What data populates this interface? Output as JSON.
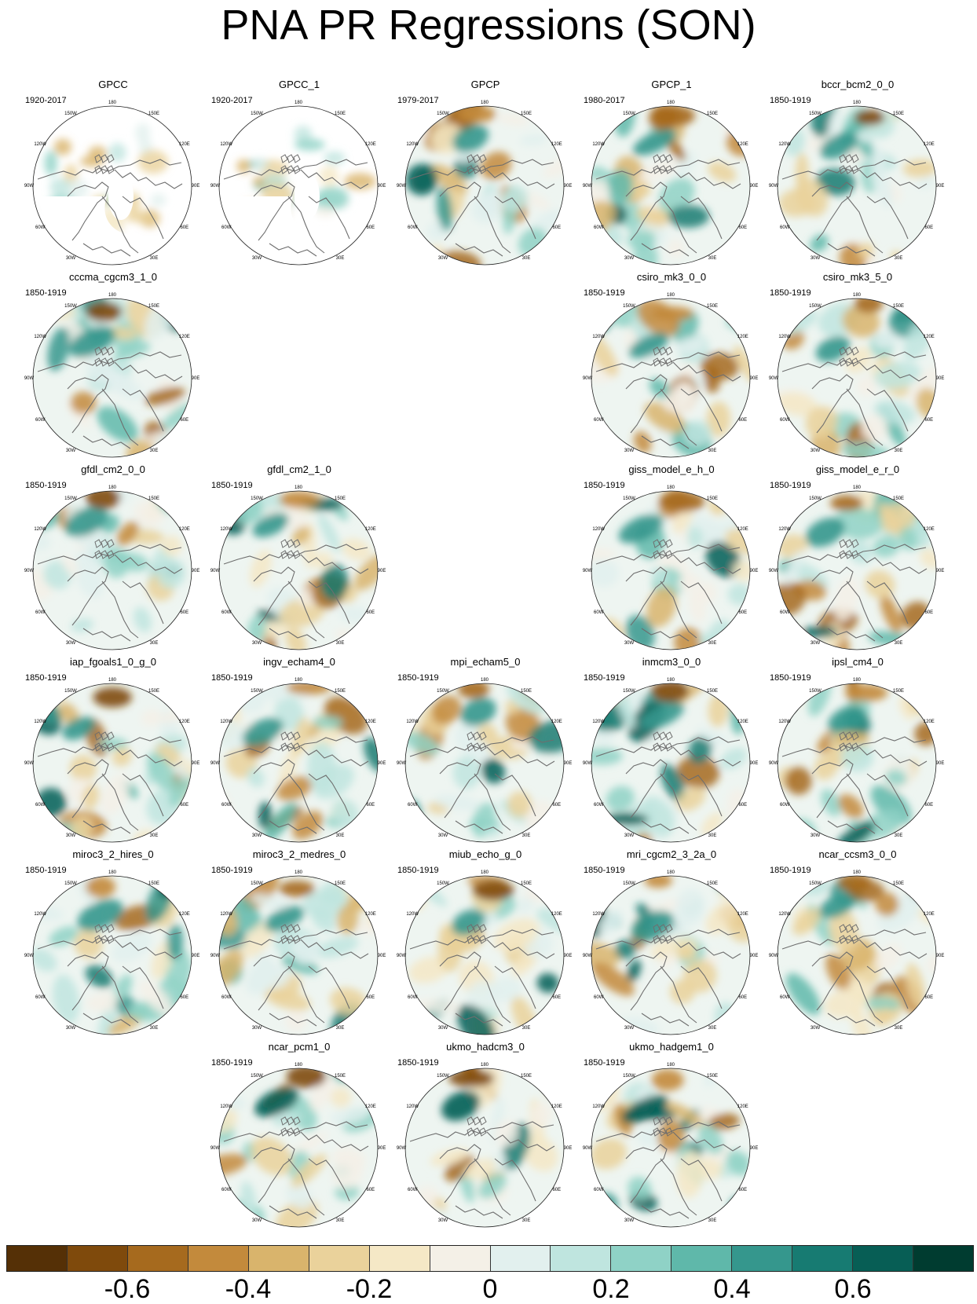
{
  "title": "PNA PR Regressions (SON)",
  "map_labels": {
    "lon_180": "180",
    "lon_150w": "150W",
    "lon_120w": "120W",
    "lon_90w": "90W",
    "lon_60w": "60W",
    "lon_30w": "30W",
    "lon_0": "0",
    "lon_30e": "30E",
    "lon_60e": "60E",
    "lon_90e": "90E",
    "lon_120e": "120E",
    "lon_150e": "150E"
  },
  "panels": [
    {
      "name": "GPCC",
      "period": "1920-2017",
      "pattern": "land"
    },
    {
      "name": "GPCC_1",
      "period": "1920-2017",
      "pattern": "land"
    },
    {
      "name": "GPCP",
      "period": "1979-2017",
      "pattern": "obs"
    },
    {
      "name": "GPCP_1",
      "period": "1980-2017",
      "pattern": "obs"
    },
    {
      "name": "bccr_bcm2_0_0",
      "period": "1850-1919",
      "pattern": "model"
    },
    {
      "name": "cccma_cgcm3_1_0",
      "period": "1850-1919",
      "pattern": "model"
    },
    {
      "name": "csiro_mk3_0_0",
      "period": "1850-1919",
      "pattern": "model"
    },
    {
      "name": "csiro_mk3_5_0",
      "period": "1850-1919",
      "pattern": "model"
    },
    {
      "name": "gfdl_cm2_0_0",
      "period": "1850-1919",
      "pattern": "model"
    },
    {
      "name": "gfdl_cm2_1_0",
      "period": "1850-1919",
      "pattern": "model"
    },
    {
      "name": "giss_model_e_h_0",
      "period": "1850-1919",
      "pattern": "model"
    },
    {
      "name": "giss_model_e_r_0",
      "period": "1850-1919",
      "pattern": "model"
    },
    {
      "name": "iap_fgoals1_0_g_0",
      "period": "1850-1919",
      "pattern": "model"
    },
    {
      "name": "ingv_echam4_0",
      "period": "1850-1919",
      "pattern": "model"
    },
    {
      "name": "mpi_echam5_0",
      "period": "1850-1919",
      "pattern": "model"
    },
    {
      "name": "inmcm3_0_0",
      "period": "1850-1919",
      "pattern": "model"
    },
    {
      "name": "ipsl_cm4_0",
      "period": "1850-1919",
      "pattern": "model"
    },
    {
      "name": "miroc3_2_hires_0",
      "period": "1850-1919",
      "pattern": "model"
    },
    {
      "name": "miroc3_2_medres_0",
      "period": "1850-1919",
      "pattern": "model"
    },
    {
      "name": "miub_echo_g_0",
      "period": "1850-1919",
      "pattern": "model"
    },
    {
      "name": "mri_cgcm2_3_2a_0",
      "period": "1850-1919",
      "pattern": "model"
    },
    {
      "name": "ncar_ccsm3_0_0",
      "period": "1850-1919",
      "pattern": "model"
    },
    {
      "name": "ncar_pcm1_0",
      "period": "1850-1919",
      "pattern": "model"
    },
    {
      "name": "ukmo_hadcm3_0",
      "period": "1850-1919",
      "pattern": "model"
    },
    {
      "name": "ukmo_hadgem1_0",
      "period": "1850-1919",
      "pattern": "model"
    }
  ],
  "colorbar": {
    "colors": [
      "#553006",
      "#7f4a0c",
      "#a66a1e",
      "#c38a3c",
      "#d9b46c",
      "#ead29b",
      "#f5e8c6",
      "#f4f0e7",
      "#e2f0ee",
      "#bfe5df",
      "#8fd2c6",
      "#5fb8aa",
      "#35978d",
      "#177b72",
      "#075e55",
      "#003c30"
    ],
    "tick_labels": [
      "-0.6",
      "-0.4",
      "-0.2",
      "0",
      "0.2",
      "0.4",
      "0.6"
    ],
    "tick_values": [
      -0.6,
      -0.4,
      -0.2,
      0,
      0.2,
      0.4,
      0.6
    ],
    "range": [
      -0.8,
      0.8
    ]
  }
}
